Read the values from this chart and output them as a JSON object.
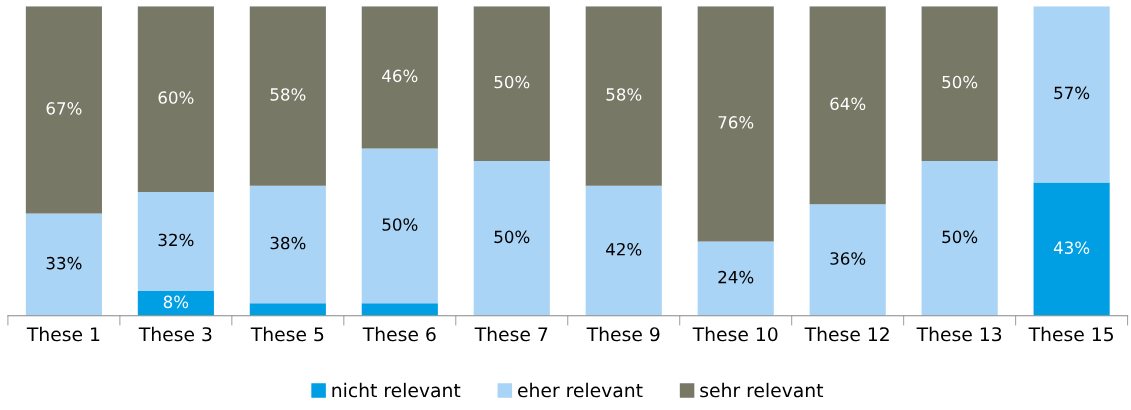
{
  "chart_data": {
    "type": "bar",
    "stacked": true,
    "legend": "bottom",
    "grid": false,
    "ylim": [
      0,
      100
    ],
    "categories": [
      "These 1",
      "These 3",
      "These 5",
      "These 6",
      "These 7",
      "These 9",
      "These 10",
      "These 12",
      "These 13",
      "These 15"
    ],
    "series": [
      {
        "name": "nicht relevant",
        "color": "#009fe3",
        "values": [
          0,
          8,
          4,
          4,
          0,
          0,
          0,
          0,
          0,
          43
        ],
        "value_labels": [
          null,
          "8%",
          null,
          null,
          null,
          null,
          null,
          null,
          null,
          "43%"
        ]
      },
      {
        "name": "eher relevant",
        "color": "#a9d4f5",
        "values": [
          33,
          32,
          38,
          50,
          50,
          42,
          24,
          36,
          50,
          57
        ],
        "value_labels": [
          "33%",
          "32%",
          "38%",
          "50%",
          "50%",
          "42%",
          "24%",
          "36%",
          "50%",
          "57%"
        ]
      },
      {
        "name": "sehr relevant",
        "color": "#787866",
        "values": [
          67,
          60,
          58,
          46,
          50,
          58,
          76,
          64,
          50,
          0
        ],
        "value_labels": [
          "67%",
          "60%",
          "58%",
          "46%",
          "50%",
          "58%",
          "76%",
          "64%",
          "50%",
          null
        ]
      }
    ]
  }
}
